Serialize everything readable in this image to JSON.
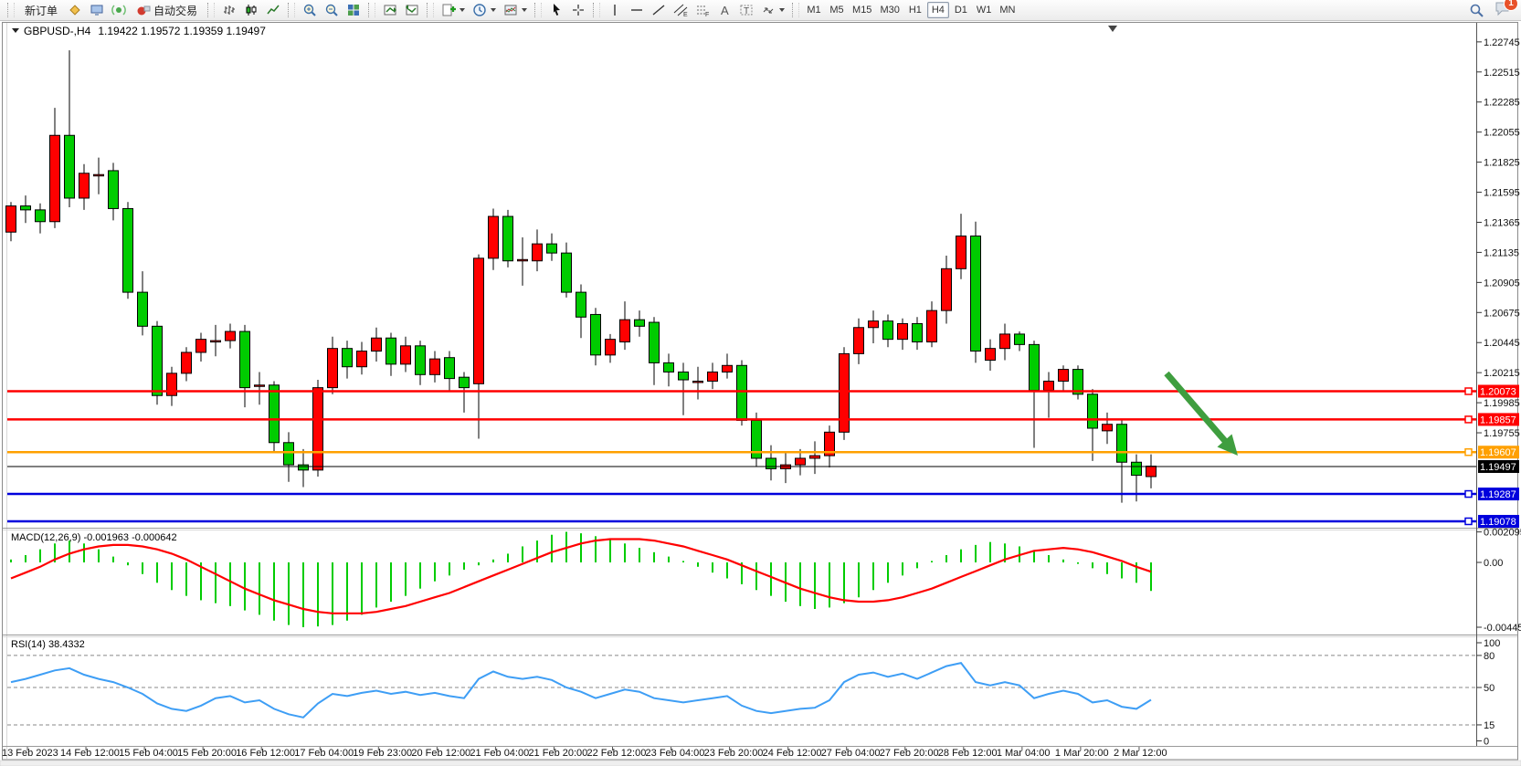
{
  "toolbar": {
    "new_order_label": "新订单",
    "auto_trading_label": "自动交易",
    "timeframes": [
      "M1",
      "M5",
      "M15",
      "M30",
      "H1",
      "H4",
      "D1",
      "W1",
      "MN"
    ],
    "active_timeframe": "H4",
    "notification_count": "1",
    "icons": [
      "new-order",
      "gold-diamond",
      "chart-window",
      "signals",
      "auto-trading",
      "bars-chart",
      "candlestick-chart",
      "line-chart",
      "zoom-in",
      "zoom-out",
      "tile-windows",
      "indicator-window",
      "indicator-list",
      "add-indicator",
      "periods-clock",
      "templates",
      "cursor",
      "crosshair",
      "vertical-line",
      "horizontal-line",
      "trendline",
      "equidistant-channel",
      "fibonacci",
      "text",
      "text-label",
      "arrows",
      "search",
      "chat"
    ]
  },
  "chart": {
    "symbol": "GBPUSD-,H4",
    "ohlc_line": "1.19422 1.19572 1.19359 1.19497",
    "macd_label": "MACD(12,26,9) -0.001963 -0.000642",
    "rsi_label": "RSI(14) 38.4332"
  },
  "chart_data": {
    "type": "candlestick",
    "symbol": "GBPUSD",
    "timeframe": "H4",
    "title_ohlc": {
      "open": "1.19422",
      "high": "1.19572",
      "low": "1.19359",
      "close": "1.19497"
    },
    "up_color": "#FF0000",
    "down_color": "#00CC00",
    "wick_color": "#000000",
    "price_axis": {
      "min": 1.19029,
      "max": 1.22772,
      "labels": [
        "1.22745",
        "1.22515",
        "1.22285",
        "1.22055",
        "1.21825",
        "1.21595",
        "1.21365",
        "1.21135",
        "1.20905",
        "1.20675",
        "1.20445",
        "1.20215",
        "1.19985",
        "1.19755"
      ]
    },
    "time_axis": {
      "labels": [
        "13 Feb 2023",
        "14 Feb 12:00",
        "15 Feb 04:00",
        "15 Feb 20:00",
        "16 Feb 12:00",
        "17 Feb 04:00",
        "19 Feb 23:00",
        "20 Feb 12:00",
        "21 Feb 04:00",
        "21 Feb 20:00",
        "22 Feb 12:00",
        "23 Feb 04:00",
        "23 Feb 20:00",
        "24 Feb 12:00",
        "27 Feb 04:00",
        "27 Feb 20:00",
        "28 Feb 12:00",
        "1 Mar 04:00",
        "1 Mar 20:00",
        "2 Mar 12:00"
      ]
    },
    "hlines": [
      {
        "price": "1.20073",
        "value": 1.20073,
        "color": "#FF0000",
        "width": 2.5,
        "handle": true
      },
      {
        "price": "1.19857",
        "value": 1.19857,
        "color": "#FF0000",
        "width": 2.5,
        "handle": true
      },
      {
        "price": "1.19607",
        "value": 1.19607,
        "color": "#FFA000",
        "width": 2.5,
        "handle": true
      },
      {
        "price": "1.19497",
        "value": 1.19497,
        "color": "#000000",
        "width": 1,
        "handle": false
      },
      {
        "price": "1.19287",
        "value": 1.19287,
        "color": "#0000DD",
        "width": 2.5,
        "handle": true
      },
      {
        "price": "1.19078",
        "value": 1.19078,
        "color": "#0000DD",
        "width": 2.5,
        "handle": true
      }
    ],
    "candles": [
      [
        1.2129,
        1.2152,
        1.2122,
        1.2149
      ],
      [
        1.2149,
        1.2157,
        1.2136,
        1.2146
      ],
      [
        1.2146,
        1.2151,
        1.2128,
        1.2137
      ],
      [
        1.2137,
        1.2224,
        1.2132,
        1.2203
      ],
      [
        1.2203,
        1.2268,
        1.2148,
        1.2155
      ],
      [
        1.2155,
        1.2181,
        1.2146,
        1.2174
      ],
      [
        1.2172,
        1.2186,
        1.2158,
        1.2173
      ],
      [
        1.2176,
        1.2182,
        1.2138,
        1.2147
      ],
      [
        1.2147,
        1.2152,
        1.2078,
        1.2083
      ],
      [
        1.2083,
        1.2099,
        1.205,
        1.2057
      ],
      [
        1.2057,
        1.2061,
        1.1997,
        1.2004
      ],
      [
        1.2004,
        1.2026,
        1.1996,
        1.2021
      ],
      [
        1.2021,
        1.2041,
        1.2015,
        1.2037
      ],
      [
        1.2037,
        1.2052,
        1.203,
        1.2047
      ],
      [
        1.2045,
        1.2058,
        1.2034,
        1.2046
      ],
      [
        1.2046,
        1.2059,
        1.204,
        1.2053
      ],
      [
        1.2053,
        1.2058,
        1.1995,
        1.201
      ],
      [
        1.2011,
        1.2022,
        1.1997,
        1.2012
      ],
      [
        1.2012,
        1.2015,
        1.196,
        1.1968
      ],
      [
        1.1968,
        1.1976,
        1.1938,
        1.1951
      ],
      [
        1.1951,
        1.1963,
        1.1934,
        1.1947
      ],
      [
        1.1947,
        1.2016,
        1.1942,
        1.201
      ],
      [
        1.201,
        1.2049,
        1.2005,
        1.204
      ],
      [
        1.204,
        1.2046,
        1.2017,
        1.2026
      ],
      [
        1.2026,
        1.2045,
        1.202,
        1.2038
      ],
      [
        1.2038,
        1.2056,
        1.203,
        1.2048
      ],
      [
        1.2048,
        1.2052,
        1.2019,
        1.2028
      ],
      [
        1.2028,
        1.2049,
        1.2022,
        1.2042
      ],
      [
        1.2042,
        1.2046,
        1.2012,
        1.202
      ],
      [
        1.202,
        1.2038,
        1.2014,
        1.2032
      ],
      [
        1.2033,
        1.2038,
        1.2008,
        1.2017
      ],
      [
        1.2018,
        1.2022,
        1.1991,
        1.201
      ],
      [
        1.2013,
        1.2112,
        1.1971,
        1.2109
      ],
      [
        1.2109,
        1.2147,
        1.21,
        1.2141
      ],
      [
        1.2141,
        1.2146,
        1.2102,
        1.2107
      ],
      [
        1.2107,
        1.2125,
        1.2088,
        1.2108
      ],
      [
        1.2107,
        1.2131,
        1.2099,
        1.212
      ],
      [
        1.212,
        1.2128,
        1.2107,
        1.2113
      ],
      [
        1.2113,
        1.2121,
        1.2079,
        1.2083
      ],
      [
        1.2083,
        1.2089,
        1.2048,
        1.2064
      ],
      [
        1.2066,
        1.2071,
        1.2027,
        1.2035
      ],
      [
        1.2035,
        1.2051,
        1.2029,
        1.2047
      ],
      [
        1.2045,
        1.2076,
        1.2039,
        1.2062
      ],
      [
        1.2062,
        1.2069,
        1.2049,
        1.2057
      ],
      [
        1.206,
        1.2064,
        1.2012,
        1.2029
      ],
      [
        1.2029,
        1.2036,
        1.2011,
        1.2022
      ],
      [
        1.2022,
        1.2029,
        1.1989,
        1.2016
      ],
      [
        1.2014,
        1.2026,
        1.2001,
        1.2015
      ],
      [
        1.2015,
        1.2029,
        1.2009,
        1.2022
      ],
      [
        1.2022,
        1.2036,
        1.2017,
        1.2027
      ],
      [
        1.2027,
        1.2031,
        1.1981,
        1.1985
      ],
      [
        1.1985,
        1.1991,
        1.195,
        1.1956
      ],
      [
        1.1956,
        1.1966,
        1.1939,
        1.1948
      ],
      [
        1.1948,
        1.1961,
        1.1937,
        1.1951
      ],
      [
        1.1951,
        1.1963,
        1.1943,
        1.1956
      ],
      [
        1.1956,
        1.1969,
        1.1944,
        1.1958
      ],
      [
        1.1958,
        1.1981,
        1.1949,
        1.1976
      ],
      [
        1.1976,
        1.2041,
        1.197,
        1.2036
      ],
      [
        1.2036,
        1.2063,
        1.2028,
        1.2056
      ],
      [
        1.2056,
        1.2069,
        1.2044,
        1.2061
      ],
      [
        1.2061,
        1.2066,
        1.2041,
        1.2047
      ],
      [
        1.2047,
        1.2063,
        1.2039,
        1.2059
      ],
      [
        1.2059,
        1.2064,
        1.2039,
        1.2045
      ],
      [
        1.2045,
        1.2076,
        1.2041,
        1.2069
      ],
      [
        1.2069,
        1.2111,
        1.2059,
        1.2101
      ],
      [
        1.2101,
        1.2143,
        1.2093,
        1.2126
      ],
      [
        1.2126,
        1.2137,
        1.2029,
        1.2038
      ],
      [
        1.2031,
        1.2047,
        1.2023,
        1.204
      ],
      [
        1.204,
        1.2059,
        1.2031,
        1.2051
      ],
      [
        1.2051,
        1.2053,
        1.2038,
        1.2043
      ],
      [
        1.2043,
        1.2046,
        1.1964,
        1.2008
      ],
      [
        1.2008,
        1.2022,
        1.1987,
        1.2015
      ],
      [
        1.2015,
        1.2027,
        1.2008,
        1.2024
      ],
      [
        1.2024,
        1.2027,
        1.2001,
        1.2005
      ],
      [
        1.2005,
        1.2009,
        1.1954,
        1.1979
      ],
      [
        1.1977,
        1.1991,
        1.1967,
        1.1982
      ],
      [
        1.1982,
        1.1985,
        1.1922,
        1.1953
      ],
      [
        1.1953,
        1.1959,
        1.1923,
        1.1943
      ],
      [
        1.1942,
        1.1959,
        1.1933,
        1.195
      ]
    ],
    "macd": {
      "label": "MACD(12,26,9)",
      "value": "-0.001963",
      "signal_value": "-0.000642",
      "axis_labels": [
        "0.002095",
        "0.00",
        "-0.004455"
      ],
      "max": 0.002095,
      "min": -0.004455,
      "hist_color": "#00CC00",
      "signal_color": "#FF0000",
      "hist": [
        0.0002,
        0.0005,
        0.0009,
        0.0013,
        0.0015,
        0.0013,
        0.0009,
        0.0004,
        -0.0002,
        -0.0008,
        -0.0014,
        -0.0019,
        -0.0023,
        -0.0026,
        -0.0028,
        -0.003,
        -0.0033,
        -0.0036,
        -0.004,
        -0.0043,
        -0.00445,
        -0.0044,
        -0.0043,
        -0.004,
        -0.0036,
        -0.0031,
        -0.0027,
        -0.0023,
        -0.0018,
        -0.0013,
        -0.0009,
        -0.0005,
        -0.0002,
        0.0002,
        0.0006,
        0.0011,
        0.0015,
        0.0019,
        0.0021,
        0.002,
        0.0018,
        0.0016,
        0.0013,
        0.001,
        0.0007,
        0.0004,
        0.0001,
        -0.0003,
        -0.0007,
        -0.0011,
        -0.0015,
        -0.0019,
        -0.0023,
        -0.0027,
        -0.003,
        -0.0032,
        -0.0031,
        -0.0028,
        -0.0024,
        -0.0019,
        -0.0014,
        -0.0009,
        -0.0004,
        0.0001,
        0.0005,
        0.0009,
        0.0012,
        0.0014,
        0.0013,
        0.0011,
        0.0008,
        0.0005,
        0.0002,
        -0.0001,
        -0.0004,
        -0.0008,
        -0.0011,
        -0.0014,
        -0.00196
      ],
      "signal": [
        -0.0011,
        -0.0007,
        -0.0003,
        0.0002,
        0.0006,
        0.0009,
        0.0011,
        0.0012,
        0.0012,
        0.0011,
        0.0009,
        0.0006,
        0.0002,
        -0.0003,
        -0.0008,
        -0.0013,
        -0.0018,
        -0.0022,
        -0.0026,
        -0.0029,
        -0.0032,
        -0.0034,
        -0.0035,
        -0.0035,
        -0.0035,
        -0.0034,
        -0.0032,
        -0.003,
        -0.0027,
        -0.0024,
        -0.0021,
        -0.0017,
        -0.0013,
        -0.0009,
        -0.0005,
        -0.0001,
        0.0003,
        0.0007,
        0.001,
        0.0013,
        0.0015,
        0.0016,
        0.0016,
        0.0016,
        0.0015,
        0.0013,
        0.0011,
        0.0008,
        0.0005,
        0.0002,
        -0.0002,
        -0.0006,
        -0.001,
        -0.0014,
        -0.0018,
        -0.0021,
        -0.0024,
        -0.0026,
        -0.0027,
        -0.0027,
        -0.0026,
        -0.0024,
        -0.0021,
        -0.0018,
        -0.0014,
        -0.001,
        -0.0006,
        -0.0002,
        0.0002,
        0.0005,
        0.0008,
        0.0009,
        0.001,
        0.0009,
        0.0007,
        0.0004,
        0.0001,
        -0.0003,
        -0.00064
      ]
    },
    "rsi": {
      "label": "RSI(14)",
      "value": "38.4332",
      "color": "#3E9EF5",
      "levels": [
        "100",
        "80",
        "50",
        "15",
        "0"
      ],
      "dashed_levels": [
        80,
        50,
        15
      ],
      "values": [
        55,
        58,
        62,
        66,
        68,
        62,
        58,
        55,
        50,
        44,
        35,
        30,
        28,
        33,
        40,
        42,
        36,
        38,
        30,
        25,
        22,
        35,
        44,
        42,
        45,
        47,
        44,
        46,
        43,
        45,
        42,
        40,
        58,
        65,
        60,
        58,
        60,
        57,
        50,
        46,
        40,
        44,
        48,
        46,
        40,
        38,
        36,
        38,
        40,
        42,
        33,
        28,
        26,
        28,
        30,
        31,
        38,
        55,
        62,
        64,
        60,
        63,
        58,
        64,
        70,
        73,
        55,
        52,
        55,
        52,
        40,
        44,
        47,
        44,
        36,
        38,
        32,
        30,
        38.43
      ]
    },
    "annotation_arrow": {
      "direction": "down-right",
      "color": "#3F9E3F"
    }
  }
}
